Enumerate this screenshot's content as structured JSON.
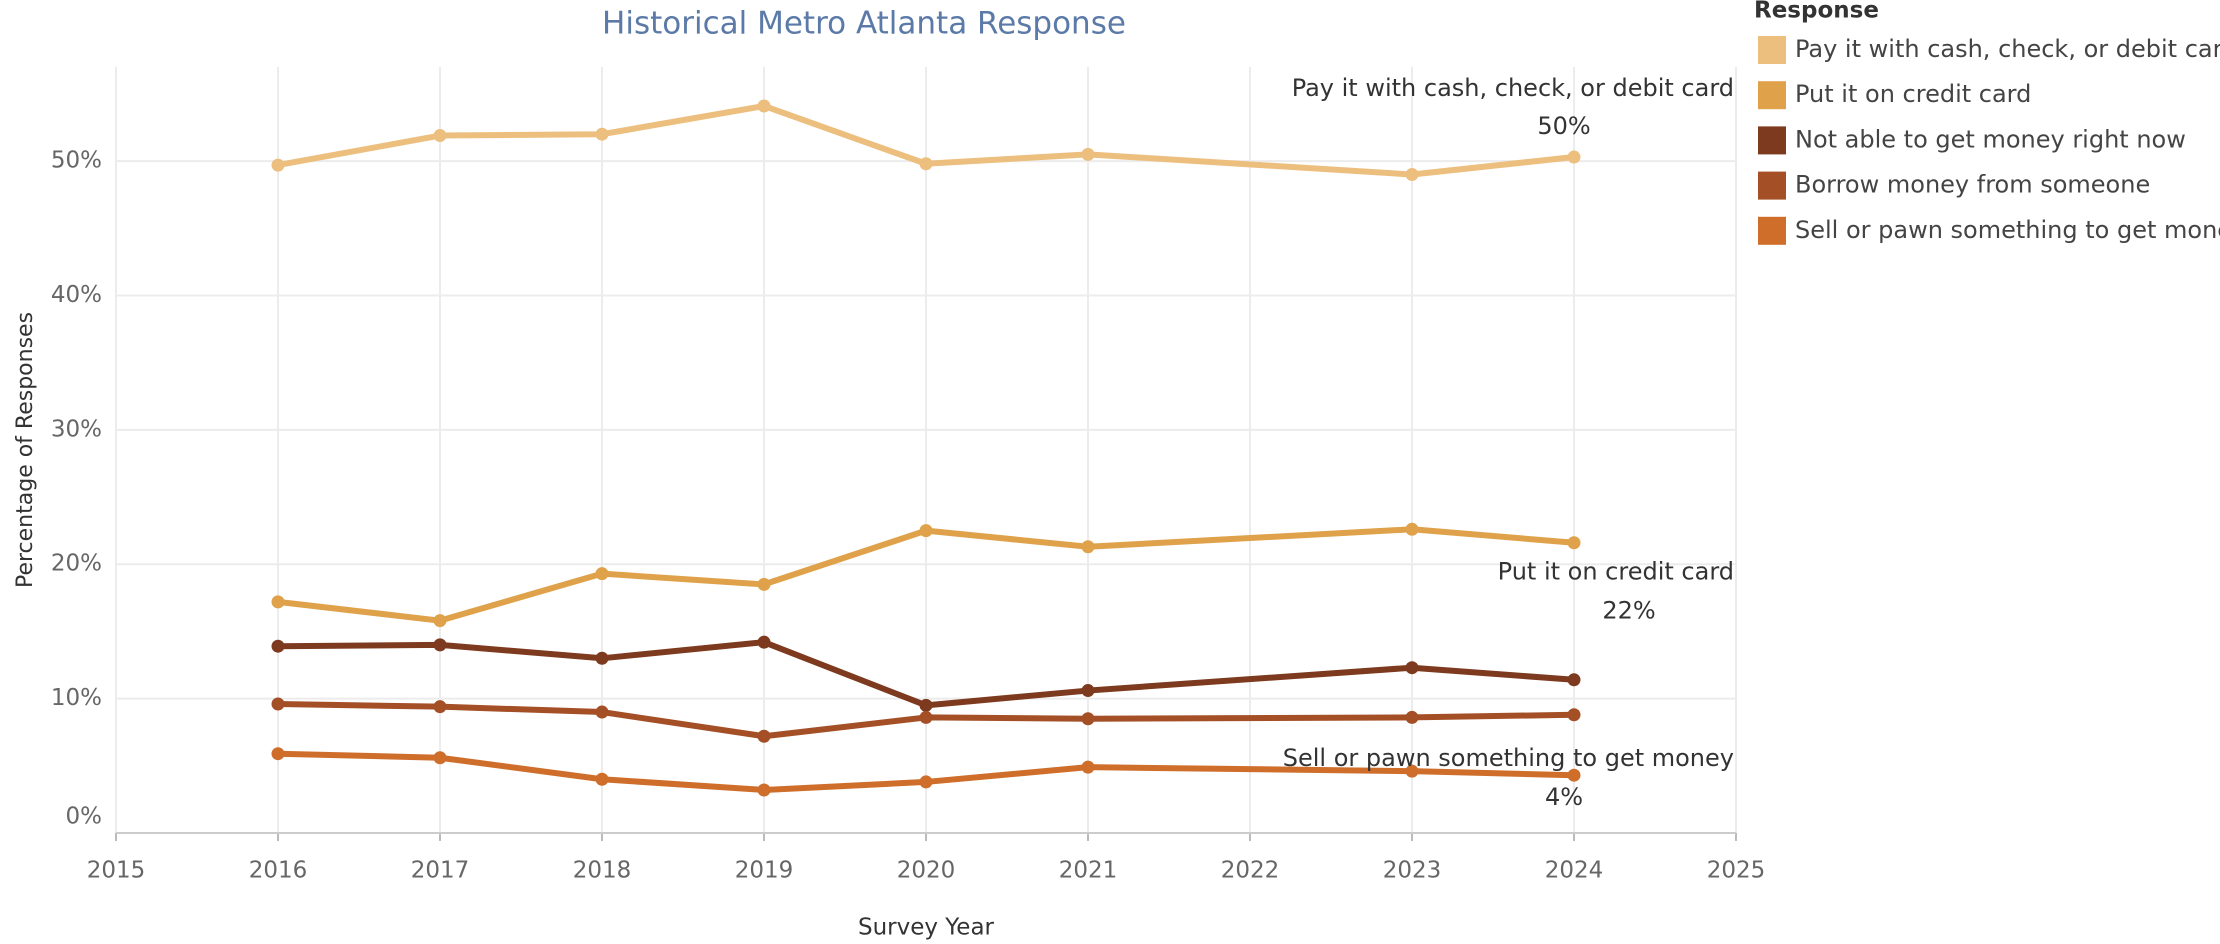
{
  "chart_data": {
    "type": "line",
    "title": "Historical Metro Atlanta Response",
    "x_label": "Survey Year",
    "y_label": "Percentage of Responses",
    "legend_title": "Response",
    "legend": "right",
    "grid": true,
    "x": [
      2016,
      2017,
      2018,
      2019,
      2020,
      2021,
      2023,
      2024
    ],
    "xlim": [
      2015,
      2025
    ],
    "xticks": [
      2015,
      2016,
      2017,
      2018,
      2019,
      2020,
      2021,
      2022,
      2023,
      2024,
      2025
    ],
    "ylim": [
      0,
      57
    ],
    "yticks": [
      {
        "value": 0,
        "label": "0%"
      },
      {
        "value": 10,
        "label": "10%"
      },
      {
        "value": 20,
        "label": "20%"
      },
      {
        "value": 30,
        "label": "30%"
      },
      {
        "value": 40,
        "label": "40%"
      },
      {
        "value": 50,
        "label": "50%"
      }
    ],
    "series": [
      {
        "name": "Pay it with cash, check, or debit card",
        "color": "#ecbf7f",
        "values": [
          49.7,
          51.9,
          52.0,
          54.1,
          49.8,
          50.5,
          49.0,
          50.3
        ]
      },
      {
        "name": "Put it on credit card",
        "color": "#dfa24a",
        "values": [
          17.2,
          15.8,
          19.3,
          18.5,
          22.5,
          21.3,
          22.6,
          21.6
        ]
      },
      {
        "name": "Not able to get money right now",
        "color": "#7d3a1f",
        "values": [
          13.9,
          14.0,
          13.0,
          14.2,
          9.5,
          10.6,
          12.3,
          11.4
        ]
      },
      {
        "name": "Borrow money from someone",
        "color": "#a44f26",
        "values": [
          9.6,
          9.4,
          9.0,
          7.2,
          8.6,
          8.5,
          8.6,
          8.8
        ]
      },
      {
        "name": "Sell or pawn something to get money",
        "color": "#cf6e2b",
        "values": [
          5.9,
          5.6,
          4.0,
          3.2,
          3.8,
          4.9,
          4.6,
          4.3
        ]
      }
    ],
    "annotations": [
      {
        "text": "Pay it with cash, check, or debit card",
        "label": "50%"
      },
      {
        "text": "Put it on credit card",
        "label": "22%"
      },
      {
        "text": "Sell or pawn something to get money",
        "label": "4%"
      }
    ]
  }
}
